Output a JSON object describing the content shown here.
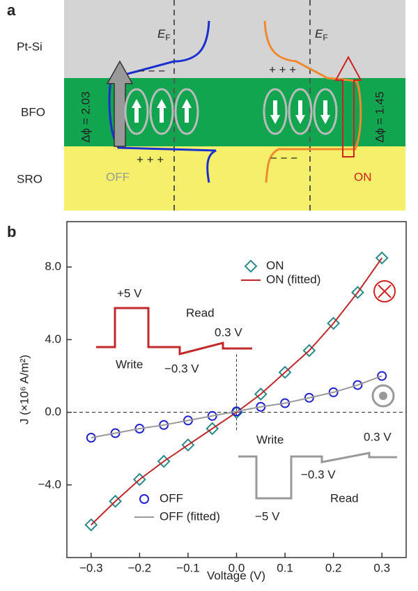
{
  "panel_a": {
    "label": "a",
    "layers": [
      "Pt-Si",
      "BFO",
      "SRO"
    ],
    "fermi": {
      "main": "E",
      "sub": "F"
    },
    "left": {
      "state": "OFF",
      "barrier": "Δϕ = 2.03",
      "top_charges": "−  −  −",
      "bottom_charges": "+   +   +"
    },
    "right": {
      "state": "ON",
      "barrier": "Δϕ = 1.45",
      "top_charges": "+   +   +",
      "bottom_charges": "−  −  −"
    }
  },
  "chart_data": {
    "type": "scatter",
    "label": "b",
    "x_label": "Voltage (V)",
    "y_label": "J (×10⁶ A/m²)",
    "xlim": [
      -0.35,
      0.35
    ],
    "xticks": [
      {
        "value": -0.3,
        "label": "−0.3"
      },
      {
        "value": -0.2,
        "label": "−0.2"
      },
      {
        "value": -0.1,
        "label": "−0.1"
      },
      {
        "value": 0,
        "label": "0.0"
      },
      0.1,
      0.2,
      0.3
    ],
    "ylim": [
      -8,
      10.5
    ],
    "yticks": [
      {
        "value": -4,
        "label": "−4.0"
      },
      {
        "value": 0,
        "label": "0.0"
      },
      {
        "value": 4,
        "label": "4.0"
      },
      {
        "value": 8,
        "label": "8.0"
      }
    ],
    "x": [
      -0.3,
      -0.25,
      -0.2,
      -0.15,
      -0.1,
      -0.05,
      0,
      0.05,
      0.1,
      0.15,
      0.2,
      0.25,
      0.3
    ],
    "series": [
      {
        "name": "ON",
        "color": "#2a8a8a",
        "marker": "diamond",
        "values": [
          -6.2,
          -4.9,
          -3.7,
          -2.7,
          -1.8,
          -0.9,
          0,
          1.0,
          2.2,
          3.4,
          4.9,
          6.6,
          8.5
        ]
      },
      {
        "name": "ON (fitted)",
        "color": "#c0282a",
        "marker": "line",
        "values": [
          -6.2,
          -4.9,
          -3.7,
          -2.7,
          -1.8,
          -0.9,
          0,
          1.0,
          2.2,
          3.4,
          4.9,
          6.6,
          8.5
        ]
      },
      {
        "name": "OFF",
        "color": "#2222cc",
        "marker": "circle",
        "values": [
          -1.4,
          -1.15,
          -0.9,
          -0.7,
          -0.45,
          -0.2,
          0.05,
          0.3,
          0.5,
          0.8,
          1.1,
          1.5,
          2.0
        ]
      },
      {
        "name": "OFF (fitted)",
        "color": "#999999",
        "marker": "line",
        "values": [
          -1.4,
          -1.15,
          -0.9,
          -0.7,
          -0.45,
          -0.2,
          0.05,
          0.3,
          0.5,
          0.8,
          1.1,
          1.5,
          2.0
        ]
      }
    ],
    "annotations": {
      "on_pulse": [
        "+5 V",
        "Read",
        "0.3 V",
        "Write",
        "−0.3 V"
      ],
      "off_pulse": [
        "Write",
        "0.3 V",
        "−0.3 V",
        "Read",
        "−5 V"
      ]
    }
  }
}
